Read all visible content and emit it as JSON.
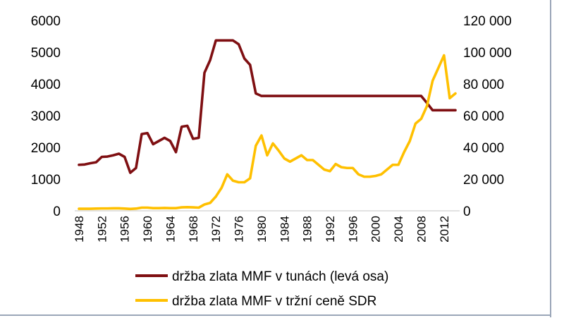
{
  "chart_data": {
    "type": "line",
    "title": "",
    "xlabel": "",
    "ylabel_left": "",
    "ylabel_right": "",
    "x": [
      1948,
      1949,
      1950,
      1951,
      1952,
      1953,
      1954,
      1955,
      1956,
      1957,
      1958,
      1959,
      1960,
      1961,
      1962,
      1963,
      1964,
      1965,
      1966,
      1967,
      1968,
      1969,
      1970,
      1971,
      1972,
      1973,
      1974,
      1975,
      1976,
      1977,
      1978,
      1979,
      1980,
      1981,
      1982,
      1983,
      1984,
      1985,
      1986,
      1987,
      1988,
      1989,
      1990,
      1991,
      1992,
      1993,
      1994,
      1995,
      1996,
      1997,
      1998,
      1999,
      2000,
      2001,
      2002,
      2003,
      2004,
      2005,
      2006,
      2007,
      2008,
      2009,
      2010,
      2011,
      2012,
      2013,
      2014
    ],
    "x_tick_labels": [
      "1948",
      "1952",
      "1956",
      "1960",
      "1964",
      "1968",
      "1972",
      "1976",
      "1980",
      "1984",
      "1988",
      "1992",
      "1996",
      "2000",
      "2004",
      "2008",
      "2012"
    ],
    "y_left_range": [
      0,
      6000
    ],
    "y_left_ticks": [
      "0",
      "1000",
      "2000",
      "3000",
      "4000",
      "5000",
      "6000"
    ],
    "y_right_range": [
      0,
      120000
    ],
    "y_right_ticks": [
      "0",
      "20 000",
      "40 000",
      "60 000",
      "80 000",
      "100 000",
      "120 000"
    ],
    "grid": false,
    "legend_position": "bottom",
    "series": [
      {
        "name": "držba zlata MMF v tunách (levá osa)",
        "axis": "left",
        "color": "#7f0f12",
        "values": [
          1450,
          1460,
          1500,
          1530,
          1700,
          1710,
          1750,
          1800,
          1700,
          1200,
          1350,
          2420,
          2450,
          2100,
          2200,
          2300,
          2200,
          1850,
          2650,
          2680,
          2270,
          2300,
          4350,
          4750,
          5370,
          5370,
          5370,
          5370,
          5250,
          4800,
          4600,
          3700,
          3620,
          3620,
          3620,
          3620,
          3620,
          3620,
          3620,
          3620,
          3620,
          3620,
          3620,
          3620,
          3620,
          3620,
          3620,
          3620,
          3620,
          3620,
          3620,
          3620,
          3620,
          3620,
          3620,
          3620,
          3620,
          3620,
          3620,
          3620,
          3620,
          3400,
          3170,
          3170,
          3170,
          3170,
          3170
        ]
      },
      {
        "name": "držba zlata MMF v tržní ceně SDR",
        "axis": "right",
        "color": "#ffc000",
        "values": [
          1300,
          1300,
          1300,
          1400,
          1500,
          1500,
          1600,
          1600,
          1400,
          1200,
          1400,
          2000,
          2000,
          1700,
          1700,
          1800,
          1700,
          1700,
          2200,
          2300,
          2200,
          2000,
          4000,
          5000,
          9000,
          14500,
          23000,
          19000,
          18000,
          18000,
          20500,
          41000,
          47500,
          35000,
          42500,
          38000,
          33000,
          31000,
          33000,
          35000,
          32000,
          32000,
          29000,
          26000,
          25000,
          29500,
          27500,
          27000,
          27000,
          23000,
          21500,
          21500,
          22000,
          23000,
          26000,
          29000,
          29000,
          37000,
          44000,
          55000,
          58000,
          66000,
          82000,
          90000,
          98000,
          71000,
          74000
        ]
      }
    ]
  }
}
